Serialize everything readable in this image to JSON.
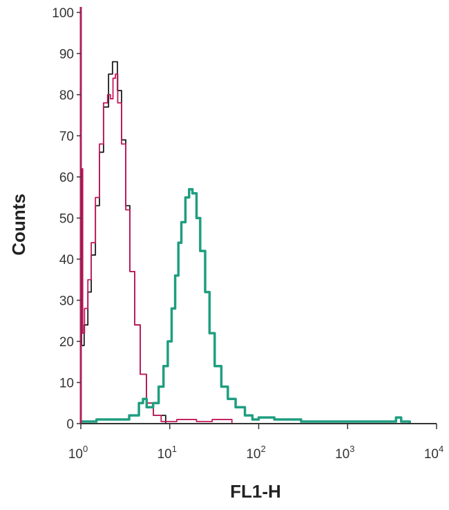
{
  "chart_data": {
    "type": "line",
    "title": "",
    "xlabel": "FL1-H",
    "ylabel": "Counts",
    "xscale": "log",
    "xlim": [
      1,
      10000
    ],
    "ylim": [
      0,
      100
    ],
    "grid": false,
    "x_tick_labels": [
      {
        "base": "10",
        "exp": "0"
      },
      {
        "base": "10",
        "exp": "1"
      },
      {
        "base": "10",
        "exp": "2"
      },
      {
        "base": "10",
        "exp": "3"
      },
      {
        "base": "10",
        "exp": "4"
      }
    ],
    "x_tick_values": [
      1,
      10,
      100,
      1000,
      10000
    ],
    "y_ticks": [
      0,
      10,
      20,
      30,
      40,
      50,
      60,
      70,
      80,
      90,
      100
    ],
    "series": [
      {
        "color": "#1a1a1a",
        "x": [
          1.0,
          1.0,
          1.02,
          1.09,
          1.2,
          1.31,
          1.46,
          1.62,
          1.8,
          2.05,
          2.27,
          2.58,
          2.87,
          3.2,
          3.56,
          4.04,
          4.66,
          5.47,
          6.55,
          9.0,
          100
        ],
        "y": [
          0,
          62,
          19,
          24,
          32,
          41,
          53,
          66,
          77,
          85,
          88,
          81,
          69,
          53,
          37,
          24,
          12,
          5,
          2,
          0,
          0
        ]
      },
      {
        "color": "#c2185b",
        "x": [
          1.0,
          1.0,
          1.05,
          1.1,
          1.2,
          1.31,
          1.46,
          1.62,
          1.8,
          2.0,
          2.15,
          2.3,
          2.45,
          2.6,
          2.87,
          3.2,
          3.56,
          4.04,
          4.66,
          5.47,
          6.55,
          8,
          12,
          15,
          20,
          30,
          50,
          100
        ],
        "y": [
          0,
          62,
          22,
          28,
          35,
          44,
          55,
          68,
          78,
          80,
          79,
          84,
          85,
          78,
          68,
          52,
          37,
          24,
          12,
          5,
          2,
          0.5,
          1,
          1,
          0.5,
          1,
          0,
          0
        ]
      },
      {
        "color": "#1f9e80",
        "x": [
          1.0,
          1.5,
          2.5,
          3.5,
          4.5,
          5,
          5.5,
          6.5,
          7.5,
          8.5,
          9.5,
          10.5,
          11.5,
          12.5,
          13.5,
          15,
          16.5,
          18,
          20,
          22,
          25,
          28,
          32,
          38,
          45,
          55,
          70,
          85,
          100,
          150,
          300,
          1000,
          3000,
          3500,
          4000,
          5000
        ],
        "y": [
          0.5,
          1,
          1,
          2,
          5,
          6,
          4,
          5,
          9,
          14,
          20,
          28,
          36,
          44,
          49,
          55,
          57,
          56,
          50,
          42,
          32,
          22,
          14,
          9,
          6,
          4,
          2,
          1,
          1.5,
          1,
          0.5,
          0.5,
          0.5,
          1.5,
          0.5,
          0
        ]
      }
    ]
  }
}
